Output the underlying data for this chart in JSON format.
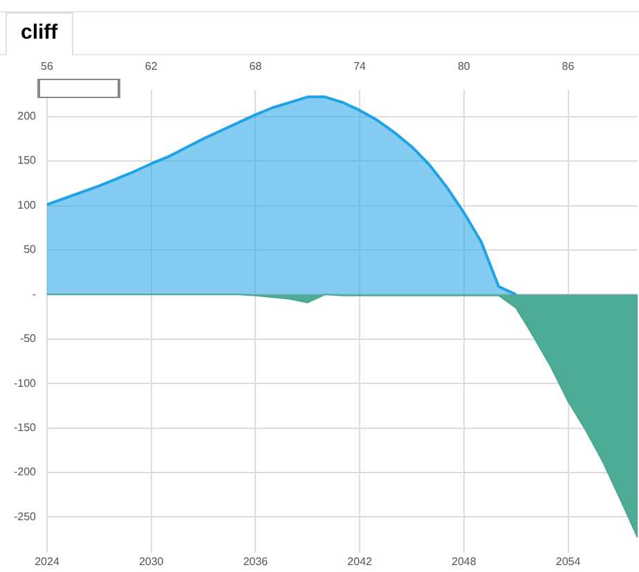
{
  "chart_data": {
    "type": "area",
    "title": "cliff",
    "x": [
      2024,
      2025,
      2026,
      2027,
      2028,
      2029,
      2030,
      2031,
      2032,
      2033,
      2034,
      2035,
      2036,
      2037,
      2038,
      2039,
      2040,
      2041,
      2042,
      2043,
      2044,
      2045,
      2046,
      2047,
      2048,
      2049,
      2050,
      2051,
      2052,
      2053,
      2054,
      2055,
      2056,
      2057,
      2058
    ],
    "series": [
      {
        "color": "#1fa3e8",
        "values": [
          101,
          108,
          115,
          122,
          130,
          138,
          147,
          155,
          165,
          175,
          184,
          193,
          202,
          210,
          216,
          222,
          222,
          216,
          207,
          196,
          182,
          166,
          146,
          121,
          92,
          59,
          9,
          0,
          null,
          null,
          null,
          null,
          null,
          null,
          null
        ]
      },
      {
        "color": "#45a890",
        "values": [
          0,
          0,
          0,
          0,
          0,
          0,
          0,
          0,
          0,
          0,
          0,
          0,
          -1,
          -3,
          -5,
          -9,
          0,
          -1,
          -1,
          -1,
          -1,
          -1,
          -1,
          -1,
          -1,
          -1,
          -1,
          -15,
          -47,
          -81,
          -120,
          -152,
          -188,
          -230,
          -273
        ]
      }
    ],
    "xlim": [
      2024,
      2058
    ],
    "xticks": [
      2024,
      2030,
      2036,
      2042,
      2048,
      2054
    ],
    "x2lim": [
      56,
      90
    ],
    "x2ticks": [
      56,
      62,
      68,
      74,
      80,
      86
    ],
    "ylim": [
      -290,
      230
    ],
    "yticks": [
      200,
      150,
      100,
      50,
      {
        "value": 0,
        "label": "-"
      },
      -50,
      -100,
      -150,
      -200,
      -250
    ],
    "grid": true,
    "legend": false
  }
}
